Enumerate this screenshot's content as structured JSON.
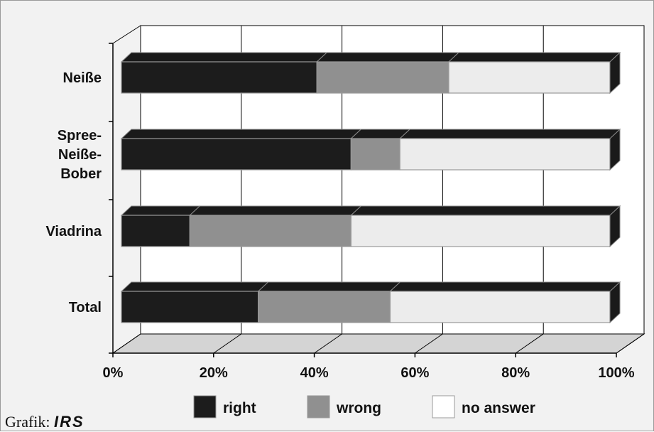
{
  "chart_data": {
    "type": "bar",
    "orientation": "horizontal",
    "stacked": true,
    "three_d": true,
    "categories": [
      "Neiße",
      "Spree-Neiße-Bober",
      "Viadrina",
      "Total"
    ],
    "category_lines": [
      [
        "Neiße"
      ],
      [
        "Spree-",
        "Neiße-",
        "Bober"
      ],
      [
        "Viadrina"
      ],
      [
        "Total"
      ]
    ],
    "series": [
      {
        "name": "right",
        "color": "#1c1c1c",
        "values": [
          40,
          47,
          14,
          28
        ]
      },
      {
        "name": "wrong",
        "color": "#909090",
        "values": [
          27,
          10,
          33,
          27
        ]
      },
      {
        "name": "no answer",
        "color": "#ececec",
        "values": [
          33,
          43,
          53,
          45
        ]
      }
    ],
    "xlim": [
      0,
      100
    ],
    "ticks": [
      "0%",
      "20%",
      "40%",
      "60%",
      "80%",
      "100%"
    ],
    "grid": true,
    "legend_position": "bottom"
  },
  "credit": {
    "prefix": "Grafik:",
    "logo": "IRS"
  }
}
